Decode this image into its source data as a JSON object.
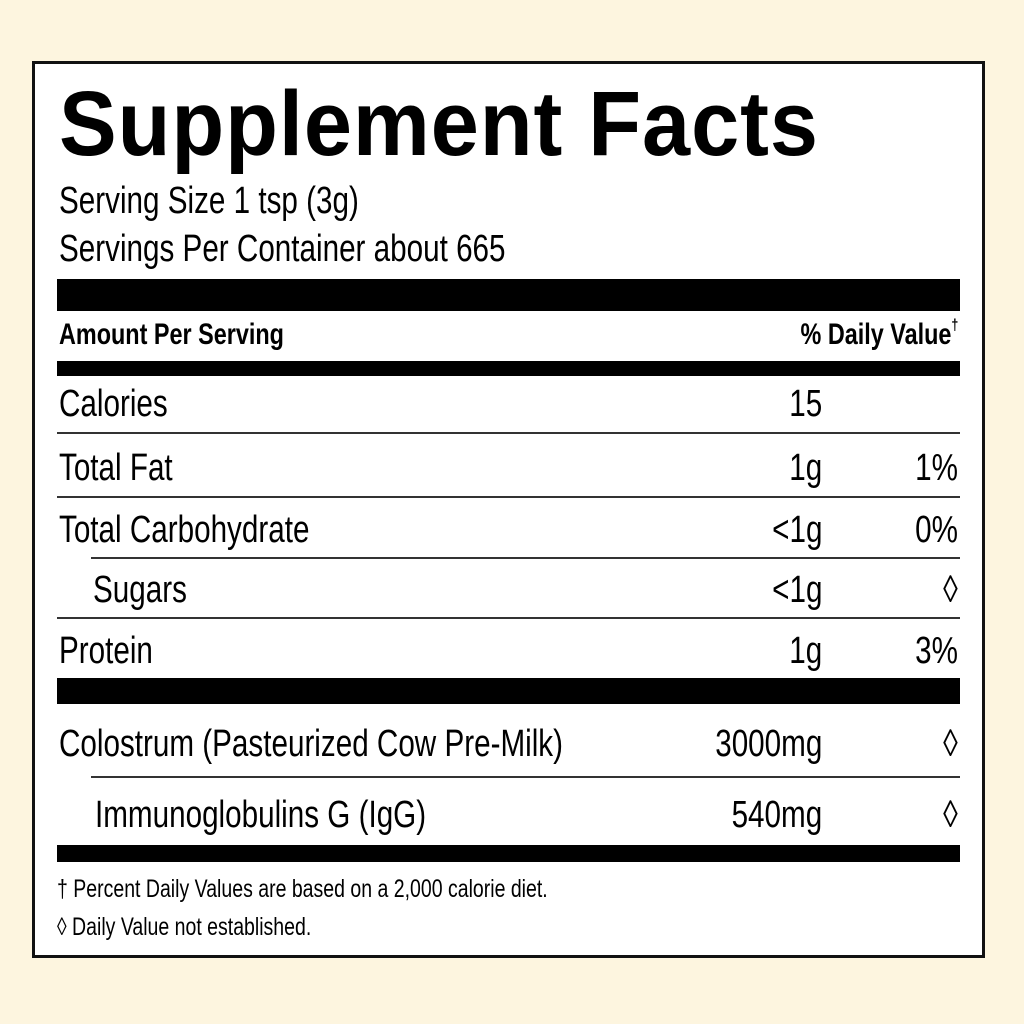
{
  "title": "Supplement Facts",
  "serving_size": "Serving Size 1 tsp (3g)",
  "servings_per_container": "Servings Per Container about 665",
  "header": {
    "amount_label": "Amount Per Serving",
    "dv_label": "% Daily Value",
    "dv_mark": "†"
  },
  "rows": [
    {
      "name": "Calories",
      "amount": "15",
      "dv": ""
    },
    {
      "name": "Total Fat",
      "amount": "1g",
      "dv": "1%"
    },
    {
      "name": "Total Carbohydrate",
      "amount": "<1g",
      "dv": "0%"
    },
    {
      "name": "Sugars",
      "amount": "<1g",
      "dv": "◊"
    },
    {
      "name": "Protein",
      "amount": "1g",
      "dv": "3%"
    },
    {
      "name": "Colostrum (Pasteurized Cow Pre-Milk)",
      "amount": "3000mg",
      "dv": "◊"
    },
    {
      "name": "Immunoglobulins G (IgG)",
      "amount": "540mg",
      "dv": "◊"
    }
  ],
  "footnotes": [
    "† Percent Daily Values are based on a 2,000 calorie diet.",
    "◊ Daily Value not established."
  ],
  "colors": {
    "background": "#fdf5df",
    "panel": "#ffffff",
    "ink": "#000000"
  }
}
